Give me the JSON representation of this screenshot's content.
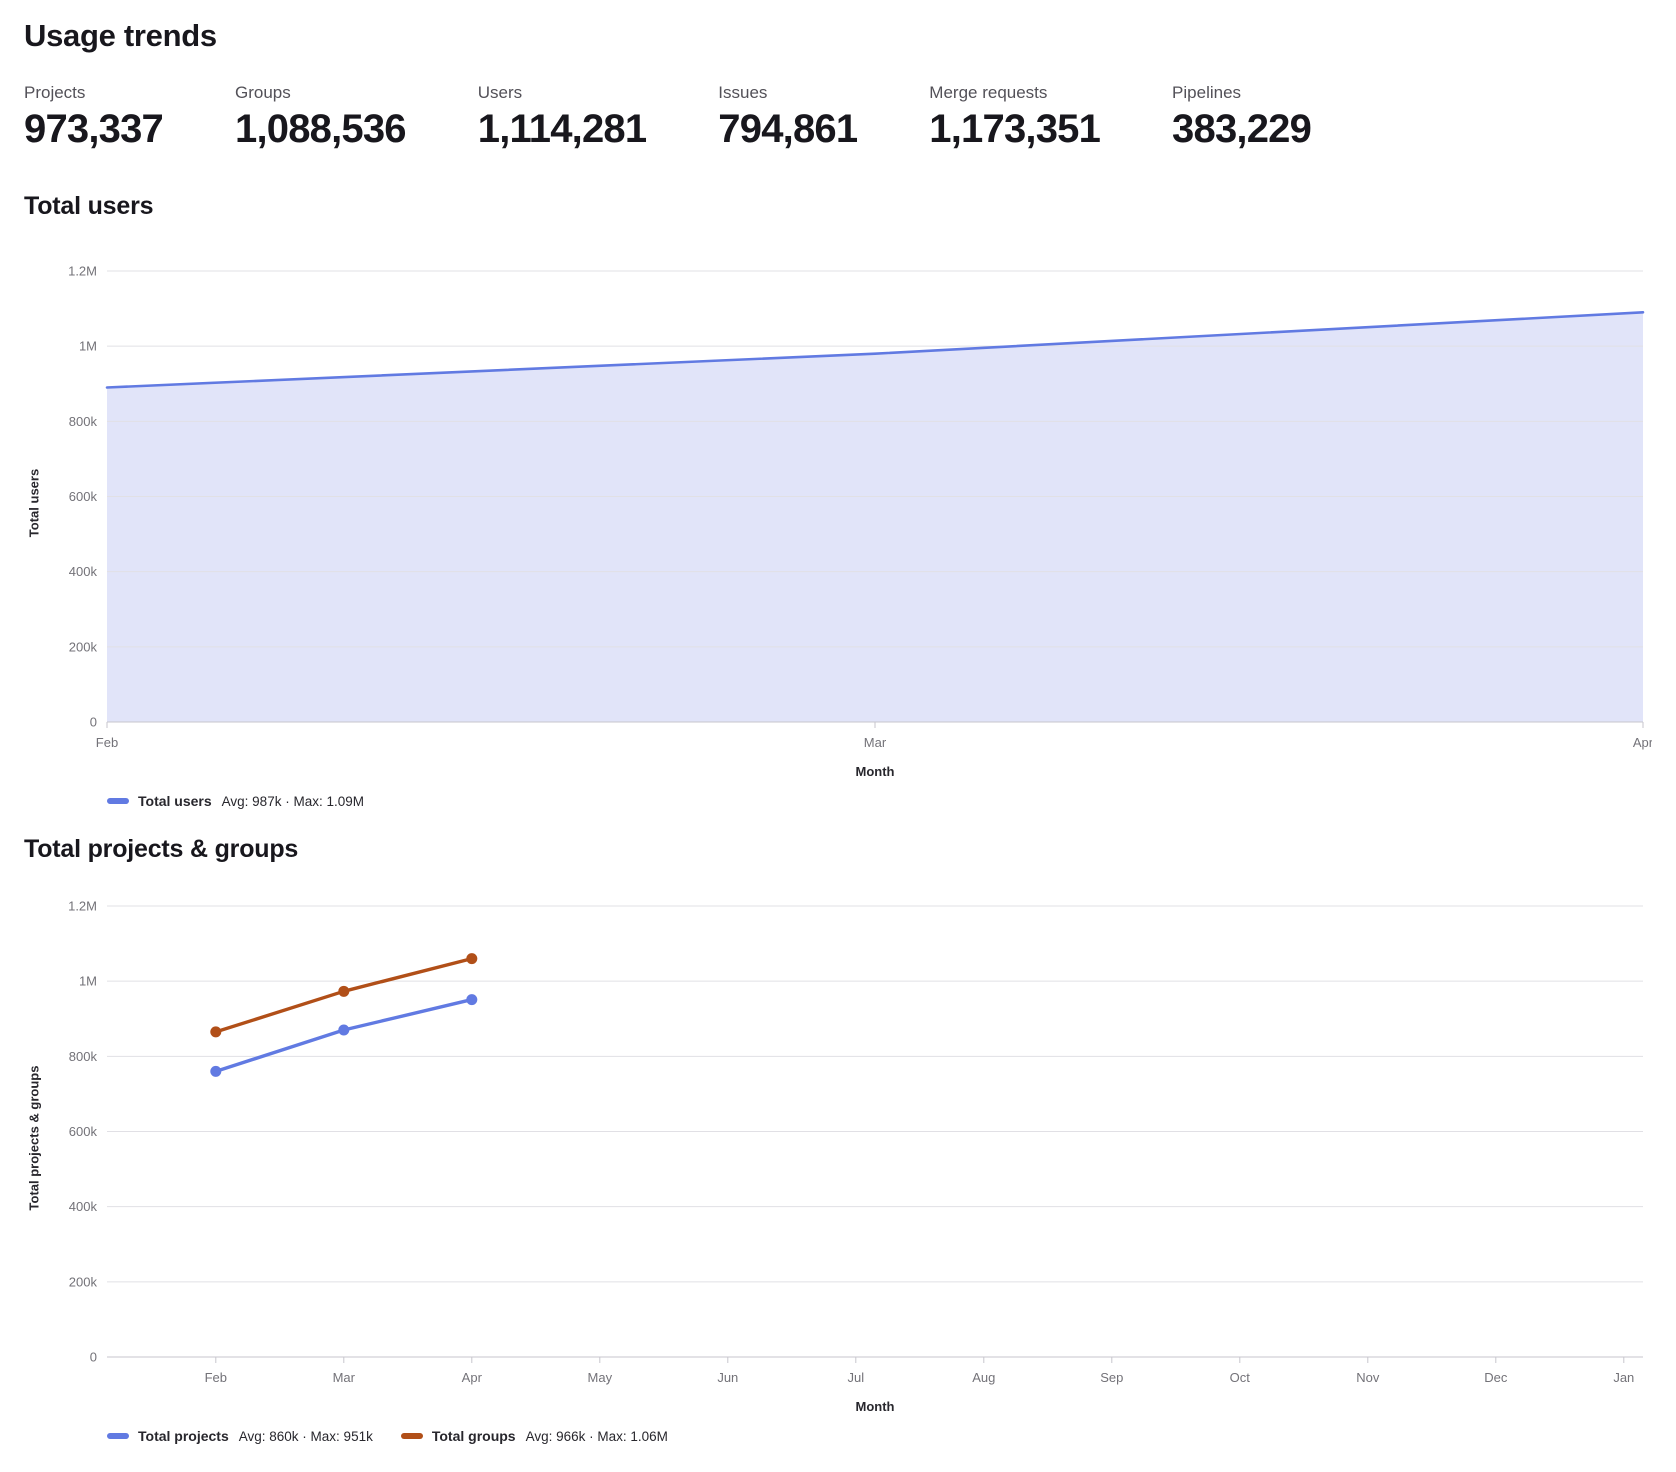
{
  "page": {
    "title": "Usage trends"
  },
  "stats": [
    {
      "label": "Projects",
      "value": "973,337"
    },
    {
      "label": "Groups",
      "value": "1,088,536"
    },
    {
      "label": "Users",
      "value": "1,114,281"
    },
    {
      "label": "Issues",
      "value": "794,861"
    },
    {
      "label": "Merge requests",
      "value": "1,173,351"
    },
    {
      "label": "Pipelines",
      "value": "383,229"
    }
  ],
  "chart_data": [
    {
      "type": "area",
      "title": "Total users",
      "ylabel": "Total users",
      "xlabel": "Month",
      "x": [
        "Feb",
        "Mar",
        "Apr"
      ],
      "x_mode": "edge",
      "ylim": [
        0,
        1200000
      ],
      "yticks": [
        {
          "v": 0,
          "label": "0"
        },
        {
          "v": 200000,
          "label": "200k"
        },
        {
          "v": 400000,
          "label": "400k"
        },
        {
          "v": 600000,
          "label": "600k"
        },
        {
          "v": 800000,
          "label": "800k"
        },
        {
          "v": 1000000,
          "label": "1M"
        },
        {
          "v": 1200000,
          "label": "1.2M"
        }
      ],
      "grid": true,
      "legend_position": "bottom-left",
      "series": [
        {
          "name": "Total users",
          "values": [
            890000,
            980000,
            1090000
          ],
          "color": "#617ae2",
          "area": true,
          "area_color": "#e1e4f9",
          "points": false
        }
      ],
      "legend": [
        {
          "label": "Total users",
          "stats": "Avg: 987k · Max: 1.09M"
        }
      ]
    },
    {
      "type": "line",
      "title": "Total projects & groups",
      "ylabel": "Total projects & groups",
      "xlabel": "Month",
      "x": [
        "Feb",
        "Mar",
        "Apr",
        "May",
        "Jun",
        "Jul",
        "Aug",
        "Sep",
        "Oct",
        "Nov",
        "Dec",
        "Jan"
      ],
      "x_mode": "band",
      "ylim": [
        0,
        1200000
      ],
      "yticks": [
        {
          "v": 0,
          "label": "0"
        },
        {
          "v": 200000,
          "label": "200k"
        },
        {
          "v": 400000,
          "label": "400k"
        },
        {
          "v": 600000,
          "label": "600k"
        },
        {
          "v": 800000,
          "label": "800k"
        },
        {
          "v": 1000000,
          "label": "1M"
        },
        {
          "v": 1200000,
          "label": "1.2M"
        }
      ],
      "grid": true,
      "legend_position": "bottom-left",
      "series": [
        {
          "name": "Total projects",
          "values": [
            760000,
            870000,
            951000
          ],
          "color": "#617ae2",
          "area": false,
          "points": true
        },
        {
          "name": "Total groups",
          "values": [
            865000,
            973000,
            1060000
          ],
          "color": "#b14f18",
          "area": false,
          "points": true
        }
      ],
      "legend": [
        {
          "label": "Total projects",
          "stats": "Avg: 860k · Max: 951k"
        },
        {
          "label": "Total groups",
          "stats": "Avg: 966k · Max: 1.06M"
        }
      ]
    }
  ]
}
